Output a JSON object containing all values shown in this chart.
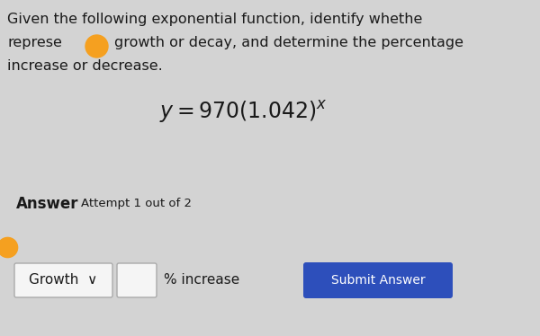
{
  "bg_color": "#d3d3d3",
  "line1": "Given the following exponential function, identify whethe",
  "line2_a": "represe",
  "line2_b": "growth or decay, and determine the percentage",
  "line3": "increase or decrease.",
  "formula": "$y = 970(1.042)^{x}$",
  "answer_label": "Answer",
  "attempt_label": "Attempt 1 out of 2",
  "dropdown_text": "Growth  ∨",
  "percent_label": "% increase",
  "button_text": "Submit Answer",
  "button_color": "#2d4fbb",
  "button_text_color": "#ffffff",
  "dropdown_bg": "#f5f5f5",
  "input_box_bg": "#f5f5f5",
  "text_color": "#1a1a1a",
  "orange_dot_color": "#f5a020",
  "font_size_body": 11.5,
  "font_size_formula": 17,
  "font_size_answer_bold": 12,
  "font_size_attempt": 9.5,
  "font_size_button": 10,
  "font_size_dropdown": 11,
  "font_size_pct": 11
}
